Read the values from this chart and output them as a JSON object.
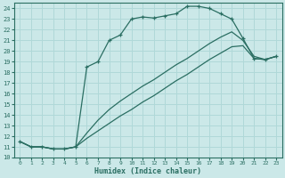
{
  "xlabel": "Humidex (Indice chaleur)",
  "bg_color": "#cbe8e8",
  "grid_color": "#b0d8d8",
  "line_color": "#2a6e62",
  "xlim": [
    -0.5,
    23.5
  ],
  "ylim": [
    10,
    24.5
  ],
  "xticks": [
    0,
    1,
    2,
    3,
    4,
    5,
    6,
    7,
    8,
    9,
    10,
    11,
    12,
    13,
    14,
    15,
    16,
    17,
    18,
    19,
    20,
    21,
    22,
    23
  ],
  "yticks": [
    10,
    11,
    12,
    13,
    14,
    15,
    16,
    17,
    18,
    19,
    20,
    21,
    22,
    23,
    24
  ],
  "line1_x": [
    0,
    1,
    2,
    3,
    4,
    5,
    6,
    7,
    8,
    9,
    10,
    11,
    12,
    13,
    14,
    15,
    16,
    17,
    18,
    19,
    20,
    21,
    22,
    23
  ],
  "line1_y": [
    11.5,
    11.0,
    11.0,
    10.8,
    10.8,
    11.0,
    18.5,
    19.0,
    21.0,
    21.5,
    23.0,
    23.2,
    23.1,
    23.3,
    23.5,
    24.2,
    24.2,
    24.0,
    23.5,
    23.0,
    21.2,
    19.3,
    19.2,
    19.5
  ],
  "line2_x": [
    0,
    1,
    2,
    3,
    4,
    5,
    6,
    7,
    8,
    9,
    10,
    11,
    12,
    13,
    14,
    15,
    16,
    17,
    18,
    19,
    20,
    21,
    22,
    23
  ],
  "line2_y": [
    11.5,
    11.0,
    11.0,
    10.8,
    10.8,
    11.0,
    12.3,
    13.5,
    14.5,
    15.3,
    16.0,
    16.7,
    17.3,
    18.0,
    18.7,
    19.3,
    20.0,
    20.7,
    21.3,
    21.8,
    21.0,
    19.5,
    19.2,
    19.5
  ],
  "line3_x": [
    0,
    1,
    2,
    3,
    4,
    5,
    6,
    7,
    8,
    9,
    10,
    11,
    12,
    13,
    14,
    15,
    16,
    17,
    18,
    19,
    20,
    21,
    22,
    23
  ],
  "line3_y": [
    11.5,
    11.0,
    11.0,
    10.8,
    10.8,
    11.0,
    11.8,
    12.5,
    13.2,
    13.9,
    14.5,
    15.2,
    15.8,
    16.5,
    17.2,
    17.8,
    18.5,
    19.2,
    19.8,
    20.4,
    20.5,
    19.3,
    19.2,
    19.5
  ]
}
